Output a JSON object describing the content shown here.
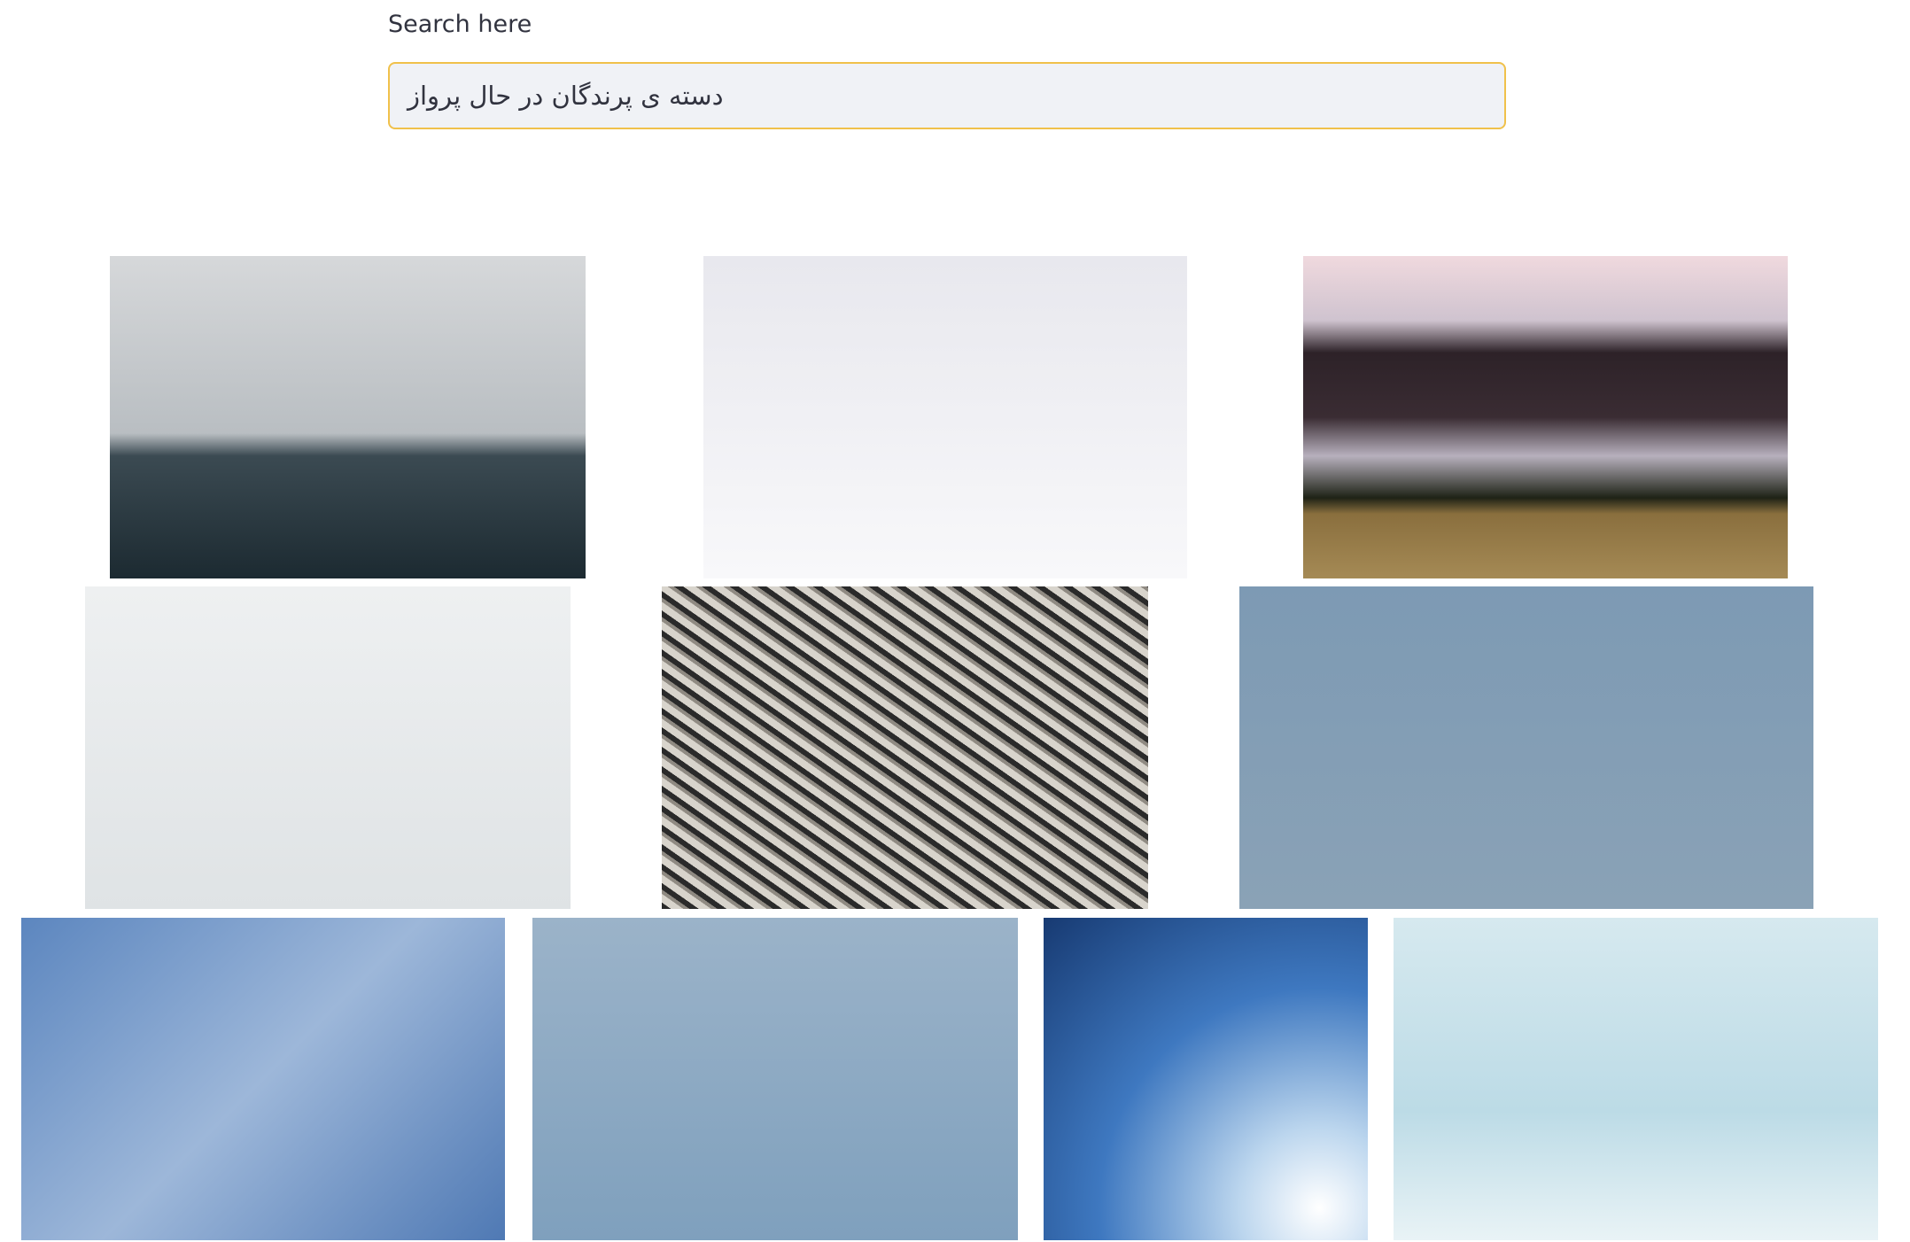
{
  "search": {
    "label": "Search here",
    "query": "دسته ی پرندگان در حال پرواز"
  }
}
